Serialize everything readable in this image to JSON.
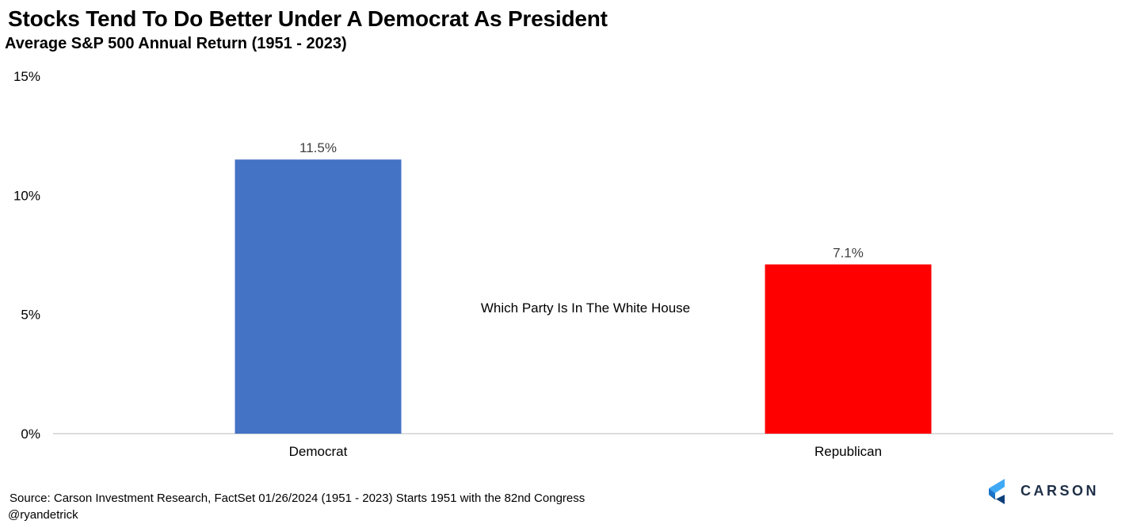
{
  "header": {
    "title": "Stocks Tend To Do Better Under A Democrat As President",
    "subtitle": "Average S&P 500 Annual Return (1951 - 2023)"
  },
  "chart_data": {
    "type": "bar",
    "categories": [
      "Democrat",
      "Republican"
    ],
    "values": [
      11.5,
      7.1
    ],
    "value_labels": [
      "11.5%",
      "7.1%"
    ],
    "colors": [
      "#4472C4",
      "#FF0000"
    ],
    "ylim": [
      0,
      15
    ],
    "yticks": [
      0,
      5,
      10,
      15
    ],
    "ytick_labels": [
      "0%",
      "5%",
      "10%",
      "15%"
    ],
    "xlabel": "Which Party Is In The White House",
    "ylabel": "",
    "grid": false,
    "legend": "none"
  },
  "footer": {
    "source": "Source: Carson Investment Research, FactSet   01/26/2024  (1951 - 2023)  Starts 1951 with the 82nd Congress",
    "handle": "@ryandetrick"
  },
  "logo": {
    "text": "CARSON",
    "colors": [
      "#3fa9f5",
      "#1a73c9",
      "#0d3f7a"
    ]
  }
}
